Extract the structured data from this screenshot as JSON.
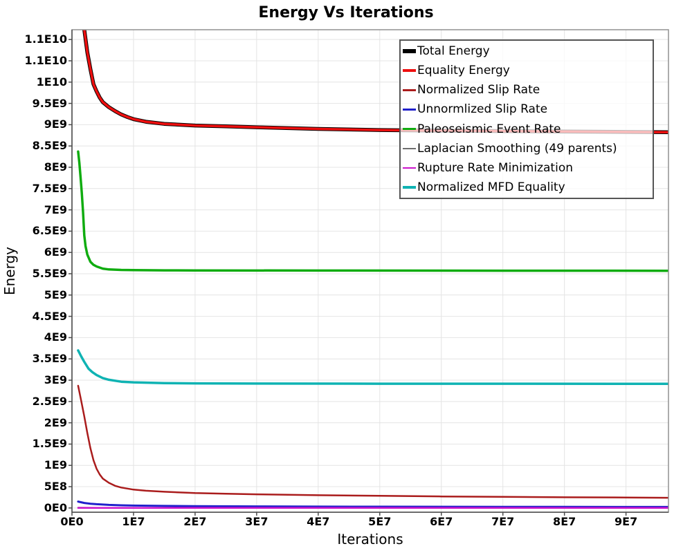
{
  "title": "Energy Vs Iterations",
  "axes": {
    "x": {
      "label": "Iterations",
      "ticks": [
        {
          "v": 0,
          "label": "0E0"
        },
        {
          "v": 10000000.0,
          "label": "1E7"
        },
        {
          "v": 20000000.0,
          "label": "2E7"
        },
        {
          "v": 30000000.0,
          "label": "3E7"
        },
        {
          "v": 40000000.0,
          "label": "4E7"
        },
        {
          "v": 50000000.0,
          "label": "5E7"
        },
        {
          "v": 60000000.0,
          "label": "6E7"
        },
        {
          "v": 70000000.0,
          "label": "7E7"
        },
        {
          "v": 80000000.0,
          "label": "8E7"
        },
        {
          "v": 90000000.0,
          "label": "9E7"
        }
      ]
    },
    "y": {
      "label": "Energy",
      "ticks": [
        {
          "v": 0,
          "label": "0E0"
        },
        {
          "v": 500000000.0,
          "label": "5E8"
        },
        {
          "v": 1000000000.0,
          "label": "1E9"
        },
        {
          "v": 1500000000.0,
          "label": "1.5E9"
        },
        {
          "v": 2000000000.0,
          "label": "2E9"
        },
        {
          "v": 2500000000.0,
          "label": "2.5E9"
        },
        {
          "v": 3000000000.0,
          "label": "3E9"
        },
        {
          "v": 3500000000.0,
          "label": "3.5E9"
        },
        {
          "v": 4000000000.0,
          "label": "4E9"
        },
        {
          "v": 4500000000.0,
          "label": "4.5E9"
        },
        {
          "v": 5000000000.0,
          "label": "5E9"
        },
        {
          "v": 5500000000.0,
          "label": "5.5E9"
        },
        {
          "v": 6000000000.0,
          "label": "6E9"
        },
        {
          "v": 6500000000.0,
          "label": "6.5E9"
        },
        {
          "v": 7000000000.0,
          "label": "7E9"
        },
        {
          "v": 7500000000.0,
          "label": "7.5E9"
        },
        {
          "v": 8000000000.0,
          "label": "8E9"
        },
        {
          "v": 8500000000.0,
          "label": "8.5E9"
        },
        {
          "v": 9000000000.0,
          "label": "9E9"
        },
        {
          "v": 9500000000.0,
          "label": "9.5E9"
        },
        {
          "v": 10000000000.0,
          "label": "1E10"
        },
        {
          "v": 10500000000.0,
          "label": "1.1E10"
        },
        {
          "v": 11000000000.0,
          "label": "1.1E10"
        }
      ]
    }
  },
  "colors": {
    "grid": "#e4e4e4",
    "plot_outline": "#909090",
    "axis_line": "#4d4d4d",
    "legend_border": "#555555",
    "background": "#ffffff"
  },
  "chart_data": {
    "type": "line",
    "title": "Energy Vs Iterations",
    "xlabel": "Iterations",
    "ylabel": "Energy",
    "xlim": [
      0,
      96900000.0
    ],
    "ylim": [
      -100000000.0,
      11230000000.0
    ],
    "grid": true,
    "legend_position": "top-right",
    "series": [
      {
        "name": "Total Energy",
        "color": "#000000",
        "width": 5.5,
        "points": [
          [
            1000000.0,
            13500000000.0
          ],
          [
            1500000.0,
            12050000000.0
          ],
          [
            2000000.0,
            11230000000.0
          ],
          [
            2500000.0,
            10700000000.0
          ],
          [
            3000000.0,
            10300000000.0
          ],
          [
            3500000.0,
            9950000000.0
          ],
          [
            4000000.0,
            9780000000.0
          ],
          [
            4500000.0,
            9640000000.0
          ],
          [
            5000000.0,
            9530000000.0
          ],
          [
            6000000.0,
            9410000000.0
          ],
          [
            7000000.0,
            9320000000.0
          ],
          [
            8000000.0,
            9240000000.0
          ],
          [
            9000000.0,
            9180000000.0
          ],
          [
            10000000.0,
            9130000000.0
          ],
          [
            12000000.0,
            9070000000.0
          ],
          [
            15000000.0,
            9020000000.0
          ],
          [
            20000000.0,
            8980000000.0
          ],
          [
            25000000.0,
            8960000000.0
          ],
          [
            30000000.0,
            8940000000.0
          ],
          [
            40000000.0,
            8900000000.0
          ],
          [
            50000000.0,
            8875000000.0
          ],
          [
            60000000.0,
            8860000000.0
          ],
          [
            70000000.0,
            8850000000.0
          ],
          [
            80000000.0,
            8840000000.0
          ],
          [
            90000000.0,
            8830000000.0
          ],
          [
            96900000.0,
            8825000000.0
          ]
        ]
      },
      {
        "name": "Equality Energy",
        "color": "#ee0f0f",
        "width": 3.5,
        "points": [
          [
            1000000.0,
            13500000000.0
          ],
          [
            1500000.0,
            12050000000.0
          ],
          [
            2000000.0,
            11230000000.0
          ],
          [
            2500000.0,
            10700000000.0
          ],
          [
            3000000.0,
            10300000000.0
          ],
          [
            3500000.0,
            9950000000.0
          ],
          [
            4000000.0,
            9780000000.0
          ],
          [
            4500000.0,
            9640000000.0
          ],
          [
            5000000.0,
            9530000000.0
          ],
          [
            6000000.0,
            9410000000.0
          ],
          [
            7000000.0,
            9320000000.0
          ],
          [
            8000000.0,
            9240000000.0
          ],
          [
            9000000.0,
            9180000000.0
          ],
          [
            10000000.0,
            9130000000.0
          ],
          [
            12000000.0,
            9070000000.0
          ],
          [
            15000000.0,
            9020000000.0
          ],
          [
            20000000.0,
            8980000000.0
          ],
          [
            25000000.0,
            8960000000.0
          ],
          [
            30000000.0,
            8940000000.0
          ],
          [
            40000000.0,
            8900000000.0
          ],
          [
            50000000.0,
            8875000000.0
          ],
          [
            60000000.0,
            8860000000.0
          ],
          [
            70000000.0,
            8850000000.0
          ],
          [
            80000000.0,
            8840000000.0
          ],
          [
            90000000.0,
            8830000000.0
          ],
          [
            96900000.0,
            8825000000.0
          ]
        ]
      },
      {
        "name": "Normalized Slip Rate",
        "color": "#aa1c1c",
        "width": 2.5,
        "points": [
          [
            1000000.0,
            2870000000.0
          ],
          [
            1500000.0,
            2520000000.0
          ],
          [
            2000000.0,
            2150000000.0
          ],
          [
            2500000.0,
            1760000000.0
          ],
          [
            3000000.0,
            1400000000.0
          ],
          [
            3500000.0,
            1120000000.0
          ],
          [
            4000000.0,
            920000000.0
          ],
          [
            4500000.0,
            790000000.0
          ],
          [
            5000000.0,
            690000000.0
          ],
          [
            6000000.0,
            590000000.0
          ],
          [
            7000000.0,
            520000000.0
          ],
          [
            8000000.0,
            480000000.0
          ],
          [
            10000000.0,
            430000000.0
          ],
          [
            12000000.0,
            405000000.0
          ],
          [
            15000000.0,
            380000000.0
          ],
          [
            20000000.0,
            350000000.0
          ],
          [
            25000000.0,
            335000000.0
          ],
          [
            30000000.0,
            320000000.0
          ],
          [
            40000000.0,
            300000000.0
          ],
          [
            50000000.0,
            285000000.0
          ],
          [
            60000000.0,
            270000000.0
          ],
          [
            70000000.0,
            260000000.0
          ],
          [
            80000000.0,
            250000000.0
          ],
          [
            90000000.0,
            245000000.0
          ],
          [
            96900000.0,
            240000000.0
          ]
        ]
      },
      {
        "name": "Unnormlized Slip Rate",
        "color": "#2020cc",
        "width": 3,
        "points": [
          [
            1000000.0,
            150000000.0
          ],
          [
            2000000.0,
            118000000.0
          ],
          [
            3000000.0,
            100000000.0
          ],
          [
            4000000.0,
            88000000.0
          ],
          [
            6000000.0,
            72000000.0
          ],
          [
            8000000.0,
            62000000.0
          ],
          [
            10000000.0,
            56000000.0
          ],
          [
            15000000.0,
            47000000.0
          ],
          [
            20000000.0,
            42000000.0
          ],
          [
            30000000.0,
            36000000.0
          ],
          [
            40000000.0,
            32000000.0
          ],
          [
            50000000.0,
            30000000.0
          ],
          [
            60000000.0,
            28000000.0
          ],
          [
            70000000.0,
            26000000.0
          ],
          [
            80000000.0,
            25000000.0
          ],
          [
            90000000.0,
            24000000.0
          ],
          [
            96900000.0,
            23000000.0
          ]
        ]
      },
      {
        "name": "Paleoseismic Event Rate",
        "color": "#10ac10",
        "width": 3.5,
        "points": [
          [
            1000000.0,
            8370000000.0
          ],
          [
            1200000.0,
            8100000000.0
          ],
          [
            1400000.0,
            7750000000.0
          ],
          [
            1600000.0,
            7400000000.0
          ],
          [
            1800000.0,
            6950000000.0
          ],
          [
            2000000.0,
            6400000000.0
          ],
          [
            2200000.0,
            6150000000.0
          ],
          [
            2500000.0,
            5950000000.0
          ],
          [
            3000000.0,
            5780000000.0
          ],
          [
            3500000.0,
            5710000000.0
          ],
          [
            4000000.0,
            5670000000.0
          ],
          [
            5000000.0,
            5620000000.0
          ],
          [
            6000000.0,
            5600000000.0
          ],
          [
            8000000.0,
            5590000000.0
          ],
          [
            10000000.0,
            5585000000.0
          ],
          [
            15000000.0,
            5580000000.0
          ],
          [
            20000000.0,
            5578000000.0
          ],
          [
            40000000.0,
            5575000000.0
          ],
          [
            70000000.0,
            5572000000.0
          ],
          [
            96900000.0,
            5570000000.0
          ]
        ]
      },
      {
        "name": "Laplacian Smoothing (49 parents)",
        "color": "#6e6e6e",
        "width": 2,
        "points": [
          [
            1000000.0,
            9000000.0
          ],
          [
            5000000.0,
            6000000.0
          ],
          [
            20000000.0,
            4000000.0
          ],
          [
            96900000.0,
            3000000.0
          ]
        ]
      },
      {
        "name": "Rupture Rate Minimization",
        "color": "#cc14cc",
        "width": 2.5,
        "points": [
          [
            1000000.0,
            2000000.0
          ],
          [
            96900000.0,
            1000000.0
          ]
        ]
      },
      {
        "name": "Normalized MFD Equality",
        "color": "#0fb3b3",
        "width": 3.5,
        "points": [
          [
            1000000.0,
            3700000000.0
          ],
          [
            1500000.0,
            3560000000.0
          ],
          [
            2000000.0,
            3430000000.0
          ],
          [
            2700000.0,
            3270000000.0
          ],
          [
            3300000.0,
            3190000000.0
          ],
          [
            4000000.0,
            3120000000.0
          ],
          [
            5000000.0,
            3050000000.0
          ],
          [
            6000000.0,
            3010000000.0
          ],
          [
            8000000.0,
            2965000000.0
          ],
          [
            10000000.0,
            2950000000.0
          ],
          [
            15000000.0,
            2930000000.0
          ],
          [
            20000000.0,
            2925000000.0
          ],
          [
            30000000.0,
            2920000000.0
          ],
          [
            50000000.0,
            2918000000.0
          ],
          [
            70000000.0,
            2917000000.0
          ],
          [
            96900000.0,
            2915000000.0
          ]
        ]
      }
    ]
  }
}
